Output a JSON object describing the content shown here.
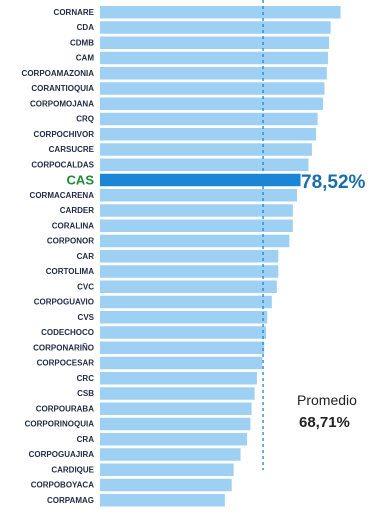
{
  "chart_data": {
    "type": "bar",
    "orientation": "horizontal",
    "categories": [
      "CORNARE",
      "CDA",
      "CDMB",
      "CAM",
      "CORPOAMAZONIA",
      "CORANTIOQUIA",
      "CORPOMOJANA",
      "CRQ",
      "CORPOCHIVOR",
      "CARSUCRE",
      "CORPOCALDAS",
      "CAS",
      "CORMACARENA",
      "CARDER",
      "CORALINA",
      "CORPONOR",
      "CAR",
      "CORTOLIMA",
      "CVC",
      "CORPOGUAVIO",
      "CVS",
      "CODECHOCO",
      "CORPONARIÑO",
      "CORPOCESAR",
      "CRC",
      "CSB",
      "CORPOURABA",
      "CORPORINOQUIA",
      "CRA",
      "CORPOGUAJIRA",
      "CARDIQUE",
      "CORPOBOYACA",
      "CORPAMAG"
    ],
    "values": [
      89.0,
      86.4,
      86.0,
      85.7,
      85.4,
      84.8,
      84.4,
      83.0,
      82.6,
      81.5,
      80.6,
      78.52,
      77.6,
      76.5,
      76.5,
      75.6,
      72.7,
      72.7,
      72.3,
      71.0,
      69.8,
      69.5,
      69.0,
      68.5,
      67.1,
      66.5,
      65.7,
      65.4,
      64.5,
      62.8,
      61.0,
      60.5,
      58.7
    ],
    "highlight": {
      "category": "CAS",
      "value_label": "78,52%",
      "color": "#1b86d6"
    },
    "average": {
      "label": "Promedio",
      "value": 68.71,
      "value_label": "68,71%"
    },
    "xlim": [
      26,
      92
    ],
    "bar_color": "#9dd0f3",
    "grid": false,
    "title": "",
    "xlabel": "",
    "ylabel": ""
  }
}
